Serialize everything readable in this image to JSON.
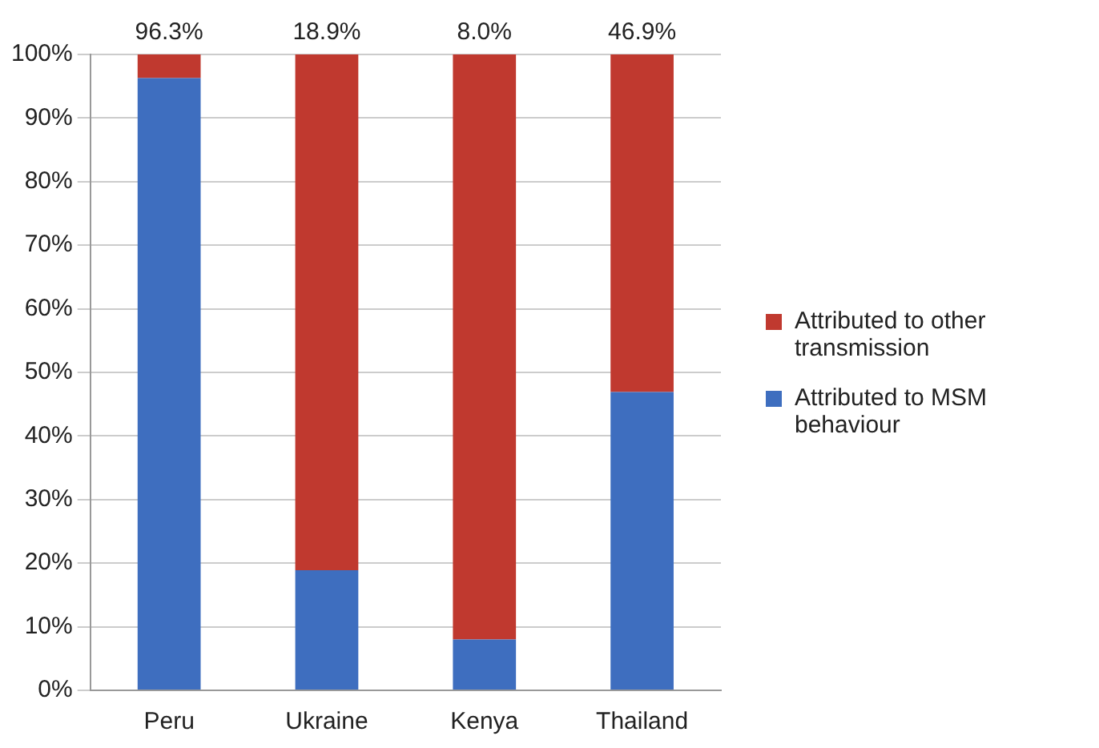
{
  "chart_data": {
    "type": "bar",
    "stacked": true,
    "categories": [
      "Peru",
      "Ukraine",
      "Kenya",
      "Thailand"
    ],
    "series": [
      {
        "name": "Attributed to MSM behaviour",
        "color": "#3e6ebf",
        "values": [
          96.3,
          18.9,
          8.0,
          46.9
        ]
      },
      {
        "name": "Attributed to other transmission",
        "color": "#c0392f",
        "values": [
          3.7,
          81.1,
          92.0,
          53.1
        ]
      }
    ],
    "annotations": [
      {
        "text": "96.3%",
        "x": "Peru",
        "y": 100
      },
      {
        "text": "18.9%",
        "x": "Ukraine",
        "y": 100
      },
      {
        "text": "8.0%",
        "x": "Kenya",
        "y": 100
      },
      {
        "text": "46.9%",
        "x": "Thailand",
        "y": 100
      }
    ],
    "ylim": [
      0,
      100
    ],
    "yticks": [
      {
        "value": 0,
        "label": "0%"
      },
      {
        "value": 10,
        "label": "10%"
      },
      {
        "value": 20,
        "label": "20%"
      },
      {
        "value": 30,
        "label": "30%"
      },
      {
        "value": 40,
        "label": "40%"
      },
      {
        "value": 50,
        "label": "50%"
      },
      {
        "value": 60,
        "label": "60%"
      },
      {
        "value": 70,
        "label": "70%"
      },
      {
        "value": 80,
        "label": "80%"
      },
      {
        "value": 90,
        "label": "90%"
      },
      {
        "value": 100,
        "label": "100%"
      }
    ],
    "grid": "y",
    "legend": "right"
  }
}
